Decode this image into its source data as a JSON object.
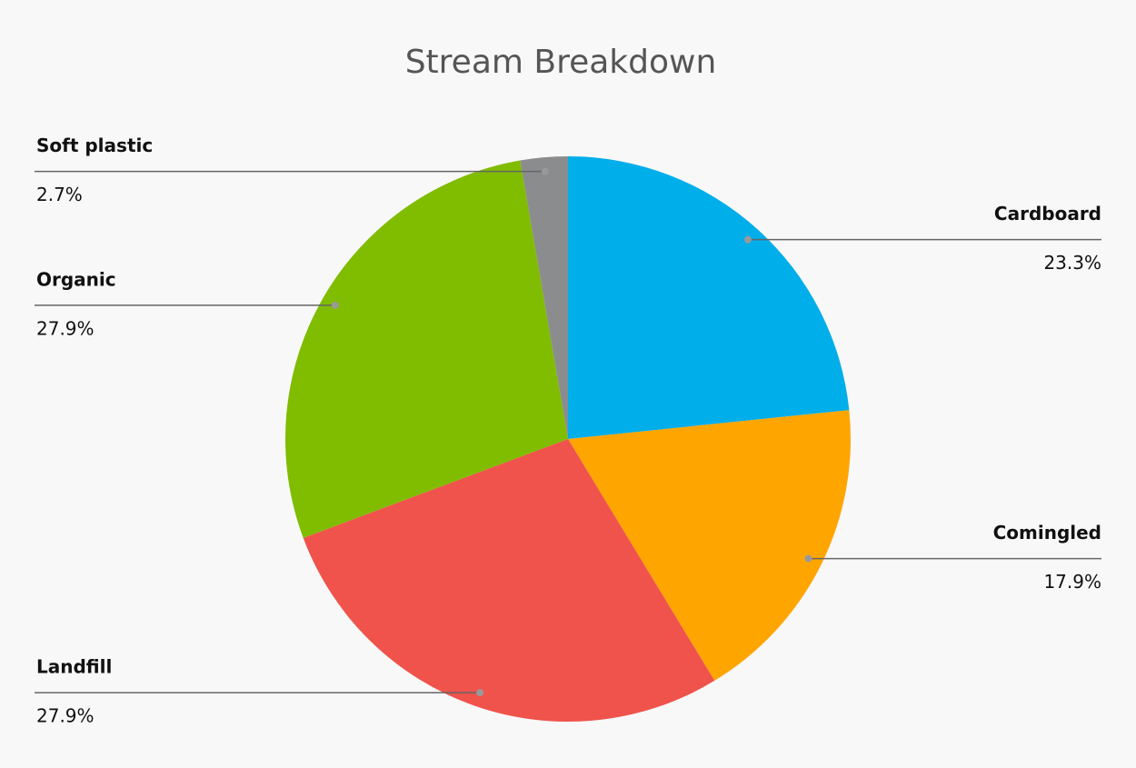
{
  "chart_data": {
    "type": "pie",
    "title": "Stream Breakdown",
    "categories": [
      "Cardboard",
      "Comingled",
      "Landfill",
      "Organic",
      "Soft plastic"
    ],
    "values": [
      23.3,
      17.9,
      27.9,
      27.9,
      2.7
    ],
    "value_labels": [
      "23.3%",
      "17.9%",
      "27.9%",
      "27.9%",
      "2.7%"
    ],
    "colors": [
      "#00aeea",
      "#ffa500",
      "#ef534b",
      "#80bc00",
      "#8b8c8e"
    ]
  }
}
